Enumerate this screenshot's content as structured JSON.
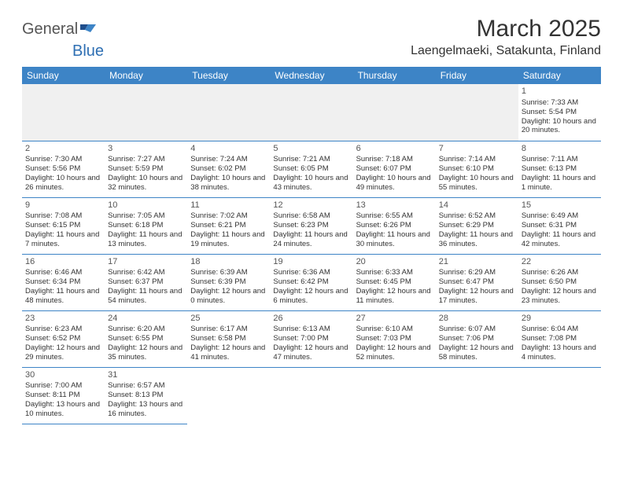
{
  "logo": {
    "general": "General",
    "blue": "Blue"
  },
  "title": "March 2025",
  "location": "Laengelmaeki, Satakunta, Finland",
  "colors": {
    "header_bg": "#3d84c6",
    "header_text": "#ffffff",
    "blank_bg": "#f0f0f0",
    "text": "#333333",
    "logo_blue": "#2e6fb3"
  },
  "weekdays": [
    "Sunday",
    "Monday",
    "Tuesday",
    "Wednesday",
    "Thursday",
    "Friday",
    "Saturday"
  ],
  "weeks": [
    [
      null,
      null,
      null,
      null,
      null,
      null,
      {
        "n": "1",
        "sr": "Sunrise: 7:33 AM",
        "ss": "Sunset: 5:54 PM",
        "dl": "Daylight: 10 hours and 20 minutes."
      }
    ],
    [
      {
        "n": "2",
        "sr": "Sunrise: 7:30 AM",
        "ss": "Sunset: 5:56 PM",
        "dl": "Daylight: 10 hours and 26 minutes."
      },
      {
        "n": "3",
        "sr": "Sunrise: 7:27 AM",
        "ss": "Sunset: 5:59 PM",
        "dl": "Daylight: 10 hours and 32 minutes."
      },
      {
        "n": "4",
        "sr": "Sunrise: 7:24 AM",
        "ss": "Sunset: 6:02 PM",
        "dl": "Daylight: 10 hours and 38 minutes."
      },
      {
        "n": "5",
        "sr": "Sunrise: 7:21 AM",
        "ss": "Sunset: 6:05 PM",
        "dl": "Daylight: 10 hours and 43 minutes."
      },
      {
        "n": "6",
        "sr": "Sunrise: 7:18 AM",
        "ss": "Sunset: 6:07 PM",
        "dl": "Daylight: 10 hours and 49 minutes."
      },
      {
        "n": "7",
        "sr": "Sunrise: 7:14 AM",
        "ss": "Sunset: 6:10 PM",
        "dl": "Daylight: 10 hours and 55 minutes."
      },
      {
        "n": "8",
        "sr": "Sunrise: 7:11 AM",
        "ss": "Sunset: 6:13 PM",
        "dl": "Daylight: 11 hours and 1 minute."
      }
    ],
    [
      {
        "n": "9",
        "sr": "Sunrise: 7:08 AM",
        "ss": "Sunset: 6:15 PM",
        "dl": "Daylight: 11 hours and 7 minutes."
      },
      {
        "n": "10",
        "sr": "Sunrise: 7:05 AM",
        "ss": "Sunset: 6:18 PM",
        "dl": "Daylight: 11 hours and 13 minutes."
      },
      {
        "n": "11",
        "sr": "Sunrise: 7:02 AM",
        "ss": "Sunset: 6:21 PM",
        "dl": "Daylight: 11 hours and 19 minutes."
      },
      {
        "n": "12",
        "sr": "Sunrise: 6:58 AM",
        "ss": "Sunset: 6:23 PM",
        "dl": "Daylight: 11 hours and 24 minutes."
      },
      {
        "n": "13",
        "sr": "Sunrise: 6:55 AM",
        "ss": "Sunset: 6:26 PM",
        "dl": "Daylight: 11 hours and 30 minutes."
      },
      {
        "n": "14",
        "sr": "Sunrise: 6:52 AM",
        "ss": "Sunset: 6:29 PM",
        "dl": "Daylight: 11 hours and 36 minutes."
      },
      {
        "n": "15",
        "sr": "Sunrise: 6:49 AM",
        "ss": "Sunset: 6:31 PM",
        "dl": "Daylight: 11 hours and 42 minutes."
      }
    ],
    [
      {
        "n": "16",
        "sr": "Sunrise: 6:46 AM",
        "ss": "Sunset: 6:34 PM",
        "dl": "Daylight: 11 hours and 48 minutes."
      },
      {
        "n": "17",
        "sr": "Sunrise: 6:42 AM",
        "ss": "Sunset: 6:37 PM",
        "dl": "Daylight: 11 hours and 54 minutes."
      },
      {
        "n": "18",
        "sr": "Sunrise: 6:39 AM",
        "ss": "Sunset: 6:39 PM",
        "dl": "Daylight: 12 hours and 0 minutes."
      },
      {
        "n": "19",
        "sr": "Sunrise: 6:36 AM",
        "ss": "Sunset: 6:42 PM",
        "dl": "Daylight: 12 hours and 6 minutes."
      },
      {
        "n": "20",
        "sr": "Sunrise: 6:33 AM",
        "ss": "Sunset: 6:45 PM",
        "dl": "Daylight: 12 hours and 11 minutes."
      },
      {
        "n": "21",
        "sr": "Sunrise: 6:29 AM",
        "ss": "Sunset: 6:47 PM",
        "dl": "Daylight: 12 hours and 17 minutes."
      },
      {
        "n": "22",
        "sr": "Sunrise: 6:26 AM",
        "ss": "Sunset: 6:50 PM",
        "dl": "Daylight: 12 hours and 23 minutes."
      }
    ],
    [
      {
        "n": "23",
        "sr": "Sunrise: 6:23 AM",
        "ss": "Sunset: 6:52 PM",
        "dl": "Daylight: 12 hours and 29 minutes."
      },
      {
        "n": "24",
        "sr": "Sunrise: 6:20 AM",
        "ss": "Sunset: 6:55 PM",
        "dl": "Daylight: 12 hours and 35 minutes."
      },
      {
        "n": "25",
        "sr": "Sunrise: 6:17 AM",
        "ss": "Sunset: 6:58 PM",
        "dl": "Daylight: 12 hours and 41 minutes."
      },
      {
        "n": "26",
        "sr": "Sunrise: 6:13 AM",
        "ss": "Sunset: 7:00 PM",
        "dl": "Daylight: 12 hours and 47 minutes."
      },
      {
        "n": "27",
        "sr": "Sunrise: 6:10 AM",
        "ss": "Sunset: 7:03 PM",
        "dl": "Daylight: 12 hours and 52 minutes."
      },
      {
        "n": "28",
        "sr": "Sunrise: 6:07 AM",
        "ss": "Sunset: 7:06 PM",
        "dl": "Daylight: 12 hours and 58 minutes."
      },
      {
        "n": "29",
        "sr": "Sunrise: 6:04 AM",
        "ss": "Sunset: 7:08 PM",
        "dl": "Daylight: 13 hours and 4 minutes."
      }
    ],
    [
      {
        "n": "30",
        "sr": "Sunrise: 7:00 AM",
        "ss": "Sunset: 8:11 PM",
        "dl": "Daylight: 13 hours and 10 minutes."
      },
      {
        "n": "31",
        "sr": "Sunrise: 6:57 AM",
        "ss": "Sunset: 8:13 PM",
        "dl": "Daylight: 13 hours and 16 minutes."
      },
      null,
      null,
      null,
      null,
      null
    ]
  ]
}
